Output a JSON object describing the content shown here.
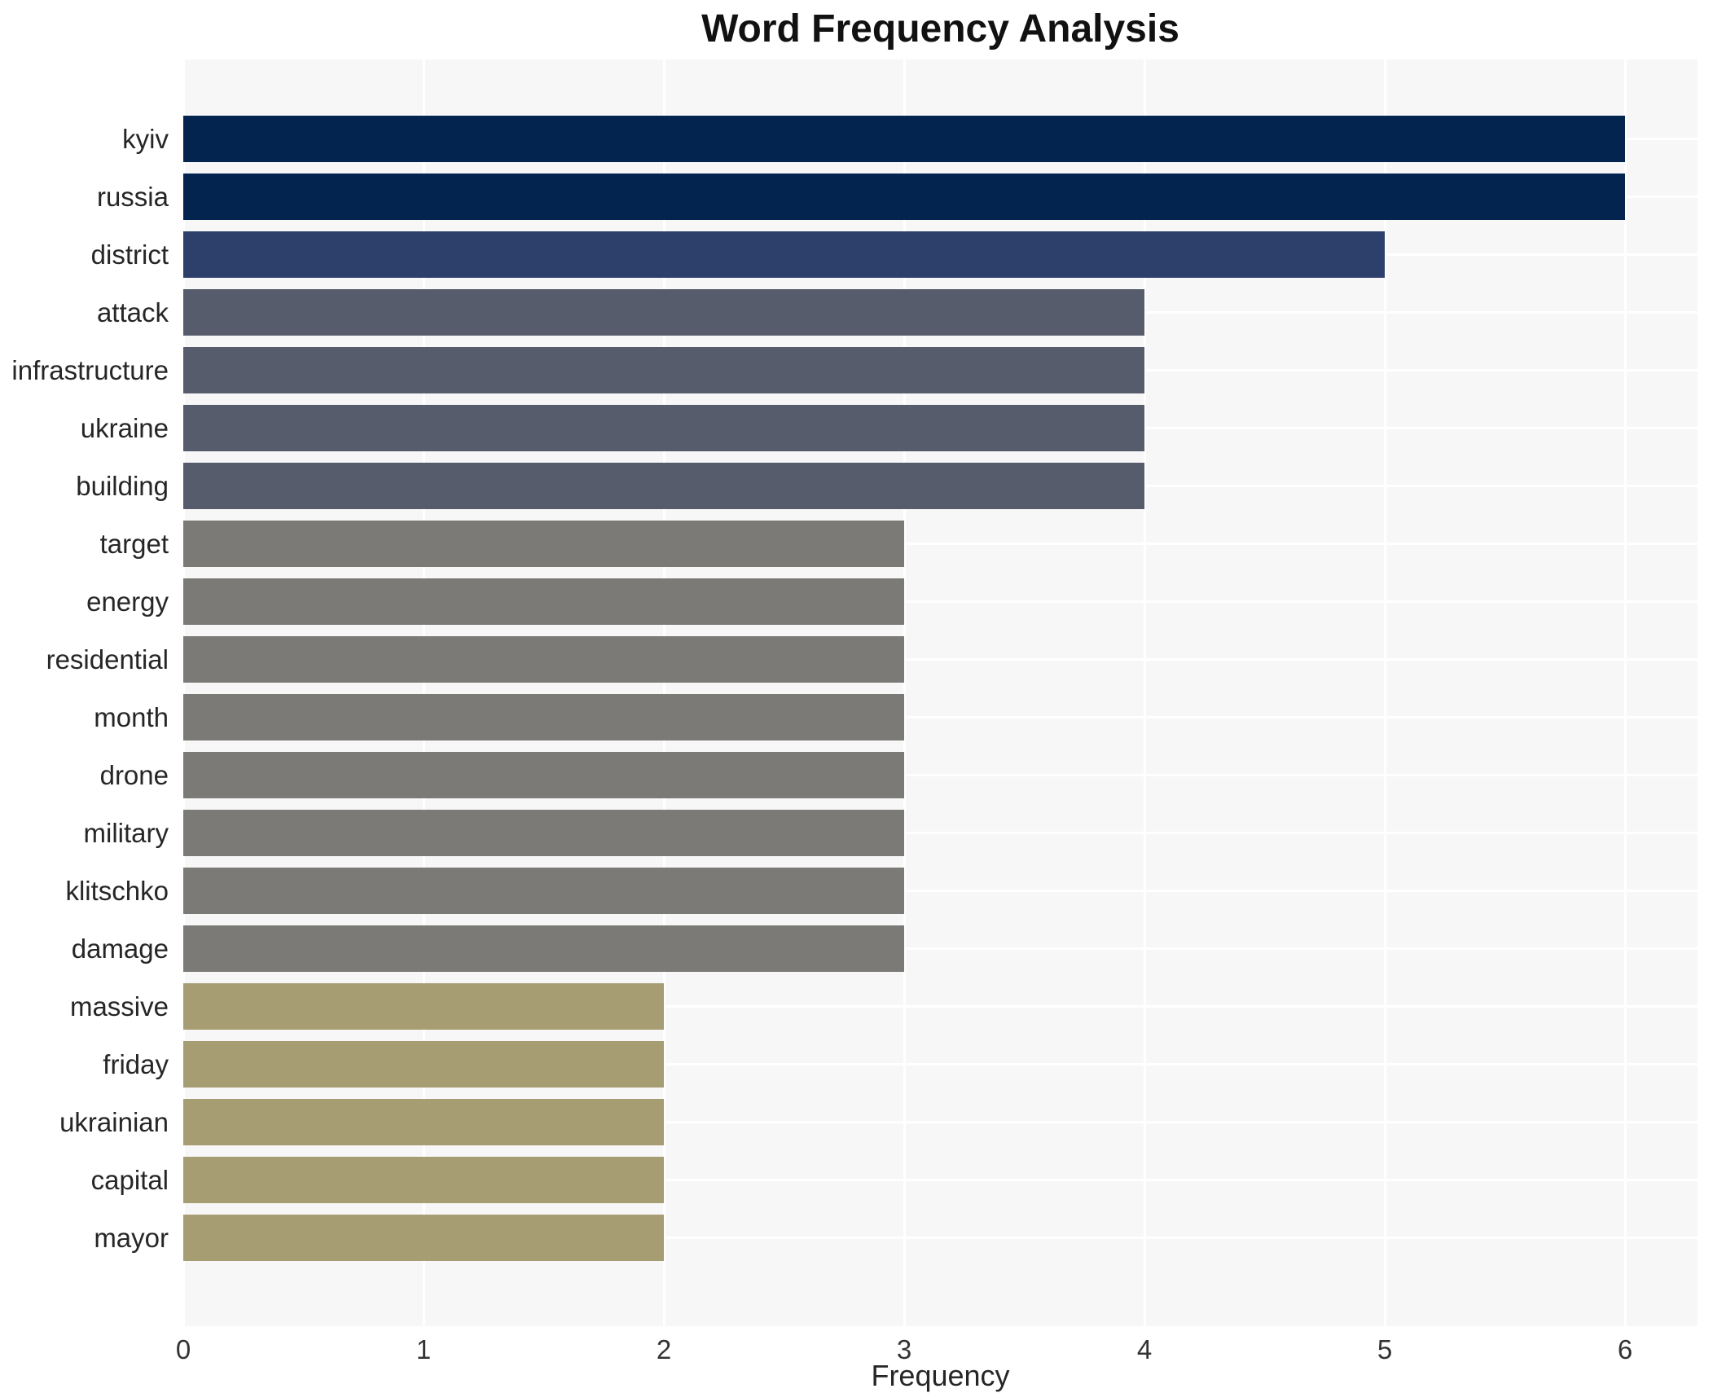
{
  "chart_data": {
    "type": "bar",
    "orientation": "horizontal",
    "title": "Word Frequency Analysis",
    "xlabel": "Frequency",
    "ylabel": "",
    "categories": [
      "kyiv",
      "russia",
      "district",
      "attack",
      "infrastructure",
      "ukraine",
      "building",
      "target",
      "energy",
      "residential",
      "month",
      "drone",
      "military",
      "klitschko",
      "damage",
      "massive",
      "friday",
      "ukrainian",
      "capital",
      "mayor"
    ],
    "values": [
      6,
      6,
      5,
      4,
      4,
      4,
      4,
      3,
      3,
      3,
      3,
      3,
      3,
      3,
      3,
      2,
      2,
      2,
      2,
      2
    ],
    "xticks": [
      0,
      1,
      2,
      3,
      4,
      5,
      6
    ],
    "xlim": [
      0,
      6.3
    ],
    "grid": true,
    "legend": false,
    "colors": {
      "plot_background": "#f7f7f7",
      "grid_line": "#ffffff",
      "bar_color_by_value": {
        "6": "#042450",
        "5": "#2d3f6b",
        "4": "#565c6c",
        "3": "#7b7a77",
        "2": "#a69d73"
      }
    }
  }
}
